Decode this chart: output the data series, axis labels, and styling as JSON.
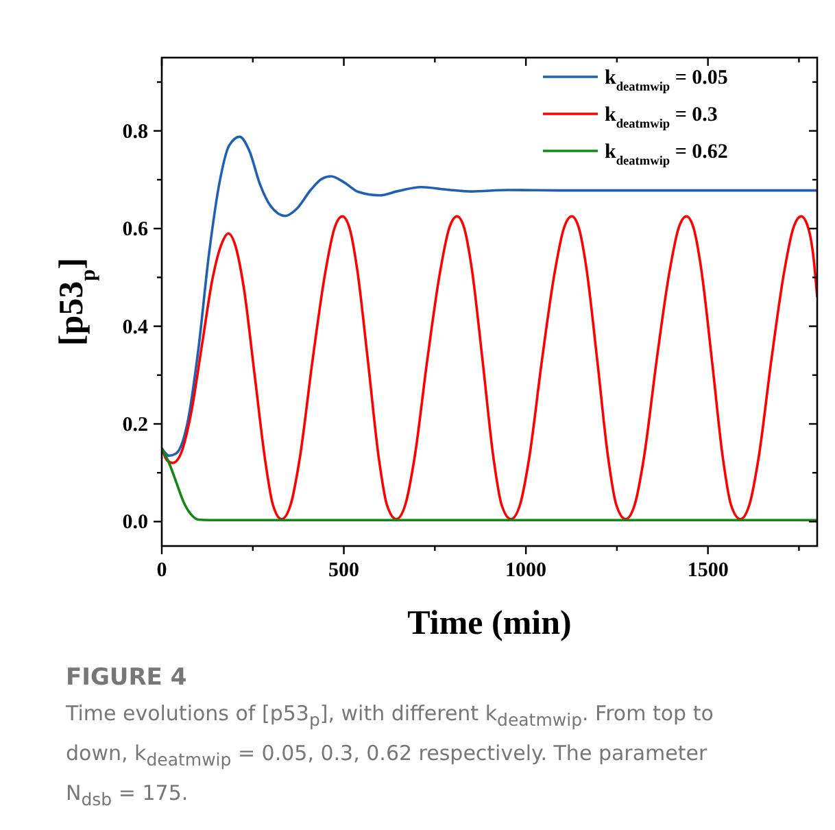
{
  "chart_data": {
    "type": "line",
    "xlabel": "Time (min)",
    "ylabel": "[p53$_{p}$]",
    "xlim": [
      0,
      1800
    ],
    "ylim": [
      -0.05,
      0.95
    ],
    "xticks": [
      0,
      {
        "value": 250,
        "label": null
      },
      500,
      {
        "value": 750,
        "label": null
      },
      1000,
      {
        "value": 1250,
        "label": null
      },
      1500,
      {
        "value": 1750,
        "label": null
      }
    ],
    "yticks": [
      {
        "value": 0,
        "label": "0.0"
      },
      {
        "value": 0.1,
        "label": null
      },
      {
        "value": 0.2,
        "label": "0.2"
      },
      {
        "value": 0.3,
        "label": null
      },
      {
        "value": 0.4,
        "label": "0.4"
      },
      {
        "value": 0.5,
        "label": null
      },
      {
        "value": 0.6,
        "label": "0.6"
      },
      {
        "value": 0.7,
        "label": null
      },
      {
        "value": 0.8,
        "label": "0.8"
      },
      {
        "value": 0.9,
        "label": null
      }
    ],
    "legend": "top right",
    "grid": false,
    "marker": "none",
    "line_style": "solid",
    "series": [
      {
        "name": "k$_{deatmwip}$ = 0.05",
        "color": "#1f5fb4",
        "x": [
          0,
          20,
          40,
          70,
          100,
          130,
          160,
          185,
          214,
          240,
          270,
          300,
          339,
          370,
          410,
          440,
          465,
          500,
          540,
          598,
          650,
          712,
          780,
          850,
          950,
          1100,
          1300,
          1800
        ],
        "values": [
          0.15,
          0.135,
          0.14,
          0.2,
          0.35,
          0.55,
          0.7,
          0.77,
          0.788,
          0.76,
          0.69,
          0.645,
          0.626,
          0.64,
          0.68,
          0.702,
          0.707,
          0.695,
          0.675,
          0.668,
          0.677,
          0.685,
          0.68,
          0.676,
          0.679,
          0.678,
          0.678,
          0.678
        ]
      },
      {
        "name": "k$_{deatmwip}$ = 0.3",
        "color": "#ff0000",
        "x": [
          0,
          15,
          30,
          50,
          80,
          110,
          140,
          165,
          183,
          200,
          225,
          255,
          285,
          305,
          329,
          354,
          379,
          414,
          449,
          474,
          496,
          516,
          536,
          566,
          596,
          618,
          644,
          669,
          694,
          729,
          764,
          789,
          811,
          831,
          851,
          881,
          911,
          933,
          959,
          984,
          1009,
          1044,
          1079,
          1104,
          1126,
          1146,
          1166,
          1196,
          1226,
          1248,
          1274,
          1299,
          1324,
          1359,
          1394,
          1419,
          1441,
          1461,
          1481,
          1511,
          1541,
          1563,
          1589,
          1614,
          1639,
          1674,
          1709,
          1734,
          1756,
          1776,
          1790,
          1800
        ],
        "values": [
          0.15,
          0.125,
          0.12,
          0.135,
          0.22,
          0.36,
          0.5,
          0.57,
          0.59,
          0.57,
          0.48,
          0.3,
          0.12,
          0.035,
          0.005,
          0.035,
          0.13,
          0.33,
          0.51,
          0.6,
          0.625,
          0.6,
          0.52,
          0.33,
          0.13,
          0.035,
          0.005,
          0.035,
          0.13,
          0.33,
          0.51,
          0.6,
          0.625,
          0.6,
          0.52,
          0.33,
          0.13,
          0.035,
          0.005,
          0.035,
          0.13,
          0.33,
          0.51,
          0.6,
          0.625,
          0.6,
          0.52,
          0.33,
          0.13,
          0.035,
          0.005,
          0.035,
          0.13,
          0.33,
          0.51,
          0.6,
          0.625,
          0.6,
          0.52,
          0.33,
          0.13,
          0.035,
          0.005,
          0.035,
          0.13,
          0.33,
          0.51,
          0.6,
          0.625,
          0.6,
          0.54,
          0.46
        ]
      },
      {
        "name": "k$_{deatmwip}$ = 0.62",
        "color": "#118811",
        "x": [
          0,
          20,
          40,
          60,
          80,
          100,
          130,
          1800
        ],
        "values": [
          0.15,
          0.12,
          0.08,
          0.04,
          0.015,
          0.004,
          0.003,
          0.003
        ]
      }
    ],
    "annotations": [
      "FIGURE 4",
      "Time evolutions of [p53$_{p}$], with different k$_{deatmwip}$. From top to down, k$_{deatmwip}$ = 0.05, 0.3, 0.62 respectively. The parameter N$_{dsb}$ = 175."
    ]
  }
}
